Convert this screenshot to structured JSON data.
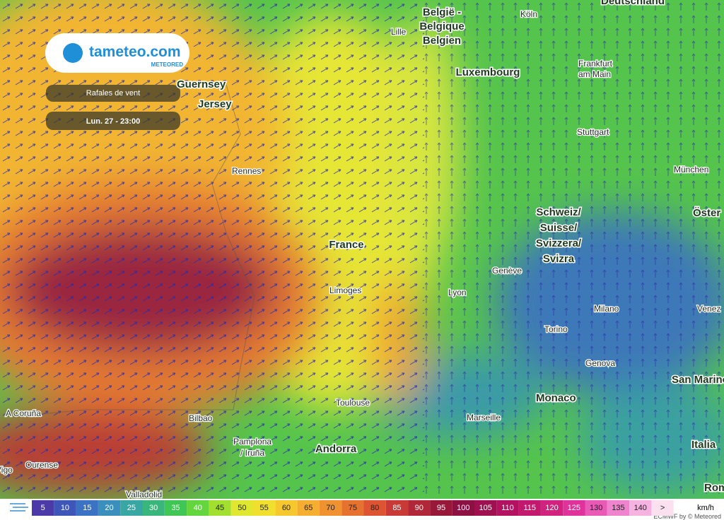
{
  "header": {
    "logo": "tameteo.com",
    "brand": "METEORED",
    "layer": "Rafales de vent",
    "time": "Lun. 27 - 23:00"
  },
  "places": {
    "deutschland": "Deutschland",
    "belgie": "België -",
    "belgique": "Belgique",
    "belgien": "Belgien",
    "koln": "Köln",
    "lille": "Lille",
    "frankfurt": "Frankfurt",
    "am_main": "am Main",
    "luxembourg": "Luxembourg",
    "guernsey": "Guernsey",
    "jersey": "Jersey",
    "stuttgart": "Stuttgart",
    "munchen": "München",
    "rennes": "Rennes",
    "schweiz": "Schweiz/",
    "suisse": "Suisse/",
    "svizzera": "Svizzera/",
    "svizra": "Svizra",
    "oster": "Öster",
    "france": "France",
    "geneve": "Genève",
    "limoges": "Limoges",
    "lyon": "Lyon",
    "milano": "Milano",
    "venez": "Venez",
    "torino": "Torino",
    "genova": "Genova",
    "san_marino": "San Marino",
    "monaco": "Monaco",
    "toulouse": "Toulouse",
    "marseille": "Marseille",
    "coruna": "A Coruña",
    "bilbao": "Bilbao",
    "pamplona": "Pamplona",
    "iruna": "/ Iruña",
    "andorra": "Andorra",
    "italia": "Italia",
    "ourense": "Ourense",
    "vigo": "Vigo",
    "valladolid": "Valladolid",
    "rom": "Rom"
  },
  "legend": {
    "unit": "km/h",
    "credit": "ECMWF by © Meteored",
    "steps": [
      {
        "label": "5",
        "color": "#4b3aa8"
      },
      {
        "label": "10",
        "color": "#3d56b8"
      },
      {
        "label": "15",
        "color": "#3b72c4"
      },
      {
        "label": "20",
        "color": "#3a8fbc"
      },
      {
        "label": "25",
        "color": "#38a6a2"
      },
      {
        "label": "30",
        "color": "#38b67c"
      },
      {
        "label": "35",
        "color": "#3fc654"
      },
      {
        "label": "40",
        "color": "#62d63c"
      },
      {
        "label": "45",
        "color": "#a2e030"
      },
      {
        "label": "50",
        "color": "#dfe72e"
      },
      {
        "label": "55",
        "color": "#f1df2e"
      },
      {
        "label": "60",
        "color": "#f6c82e"
      },
      {
        "label": "65",
        "color": "#f5ae2f"
      },
      {
        "label": "70",
        "color": "#ef922f"
      },
      {
        "label": "75",
        "color": "#e6722f"
      },
      {
        "label": "80",
        "color": "#dc5431"
      },
      {
        "label": "85",
        "color": "#c83a36"
      },
      {
        "label": "90",
        "color": "#b02838"
      },
      {
        "label": "95",
        "color": "#98183a"
      },
      {
        "label": "100",
        "color": "#8c1042"
      },
      {
        "label": "105",
        "color": "#9e1050"
      },
      {
        "label": "110",
        "color": "#b2125f"
      },
      {
        "label": "115",
        "color": "#c2186e"
      },
      {
        "label": "120",
        "color": "#d2227f"
      },
      {
        "label": "125",
        "color": "#e0329b"
      },
      {
        "label": "130",
        "color": "#e85ab6"
      },
      {
        "label": "135",
        "color": "#f083cd"
      },
      {
        "label": "140",
        "color": "#f6b2e0"
      },
      {
        "label": ">",
        "color": "#fbe0f0"
      }
    ]
  }
}
